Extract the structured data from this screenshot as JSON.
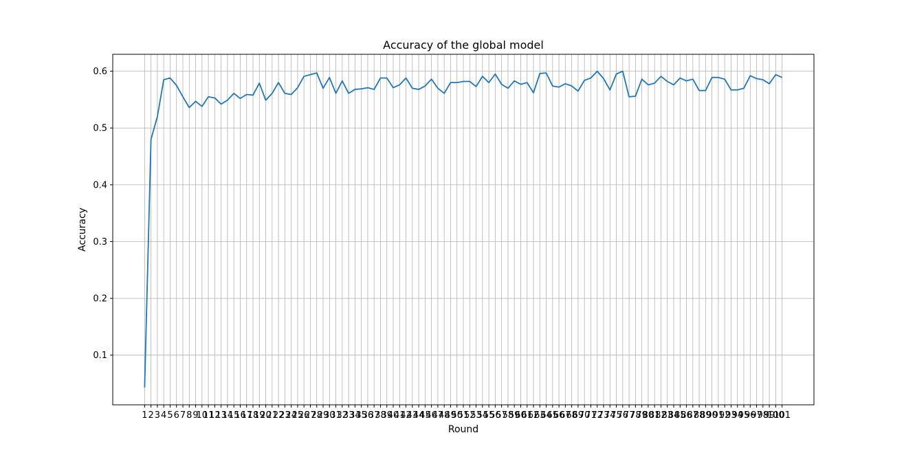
{
  "chart_data": {
    "type": "line",
    "title": "Accuracy of the global model",
    "xlabel": "Round",
    "ylabel": "Accuracy",
    "x": [
      1,
      2,
      3,
      4,
      5,
      6,
      7,
      8,
      9,
      10,
      11,
      12,
      13,
      14,
      15,
      16,
      17,
      18,
      19,
      20,
      21,
      22,
      23,
      24,
      25,
      26,
      27,
      28,
      29,
      30,
      31,
      32,
      33,
      34,
      35,
      36,
      37,
      38,
      39,
      40,
      41,
      42,
      43,
      44,
      45,
      46,
      47,
      48,
      49,
      50,
      51,
      52,
      53,
      54,
      55,
      56,
      57,
      58,
      59,
      60,
      61,
      62,
      63,
      64,
      65,
      66,
      67,
      68,
      69,
      70,
      71,
      72,
      73,
      74,
      75,
      76,
      77,
      78,
      79,
      80,
      81,
      82,
      83,
      84,
      85,
      86,
      87,
      88,
      89,
      90,
      91,
      92,
      93,
      94,
      95,
      96,
      97,
      98,
      99,
      100,
      101
    ],
    "xticks": [
      "1",
      "2",
      "3",
      "4",
      "5",
      "6",
      "7",
      "8",
      "9",
      "10",
      "11",
      "12",
      "13",
      "14",
      "15",
      "16",
      "17",
      "18",
      "19",
      "20",
      "21",
      "22",
      "23",
      "24",
      "25",
      "26",
      "27",
      "28",
      "29",
      "30",
      "31",
      "32",
      "33",
      "34",
      "35",
      "36",
      "37",
      "38",
      "39",
      "40",
      "41",
      "42",
      "43",
      "44",
      "45",
      "46",
      "47",
      "48",
      "49",
      "50",
      "51",
      "52",
      "53",
      "54",
      "55",
      "56",
      "57",
      "58",
      "59",
      "60",
      "61",
      "62",
      "63",
      "64",
      "65",
      "66",
      "67",
      "68",
      "69",
      "70",
      "71",
      "72",
      "73",
      "74",
      "75",
      "76",
      "77",
      "78",
      "79",
      "80",
      "81",
      "82",
      "83",
      "84",
      "85",
      "86",
      "87",
      "88",
      "89",
      "90",
      "91",
      "92",
      "93",
      "94",
      "95",
      "96",
      "97",
      "98",
      "99",
      "100",
      "101"
    ],
    "yticks": [
      0.1,
      0.2,
      0.3,
      0.4,
      0.5,
      0.6
    ],
    "ytick_labels": [
      "0.1",
      "0.2",
      "0.3",
      "0.4",
      "0.5",
      "0.6"
    ],
    "xlim": [
      -4,
      106
    ],
    "ylim": [
      0.0125,
      0.6298
    ],
    "grid": true,
    "series": [
      {
        "color": "#1f77b4",
        "values": [
          0.043,
          0.48,
          0.52,
          0.585,
          0.588,
          0.575,
          0.555,
          0.536,
          0.547,
          0.538,
          0.555,
          0.553,
          0.542,
          0.549,
          0.561,
          0.552,
          0.559,
          0.558,
          0.579,
          0.549,
          0.561,
          0.58,
          0.561,
          0.559,
          0.571,
          0.591,
          0.594,
          0.597,
          0.57,
          0.589,
          0.561,
          0.583,
          0.561,
          0.568,
          0.569,
          0.571,
          0.568,
          0.588,
          0.588,
          0.571,
          0.576,
          0.588,
          0.57,
          0.568,
          0.574,
          0.586,
          0.57,
          0.561,
          0.58,
          0.58,
          0.582,
          0.582,
          0.573,
          0.591,
          0.58,
          0.595,
          0.577,
          0.57,
          0.583,
          0.577,
          0.58,
          0.562,
          0.596,
          0.597,
          0.574,
          0.572,
          0.578,
          0.574,
          0.565,
          0.584,
          0.588,
          0.6,
          0.587,
          0.567,
          0.595,
          0.6,
          0.555,
          0.556,
          0.586,
          0.576,
          0.579,
          0.591,
          0.582,
          0.576,
          0.588,
          0.583,
          0.586,
          0.566,
          0.566,
          0.589,
          0.589,
          0.586,
          0.567,
          0.567,
          0.57,
          0.592,
          0.587,
          0.585,
          0.578,
          0.594,
          0.589
        ]
      }
    ]
  }
}
